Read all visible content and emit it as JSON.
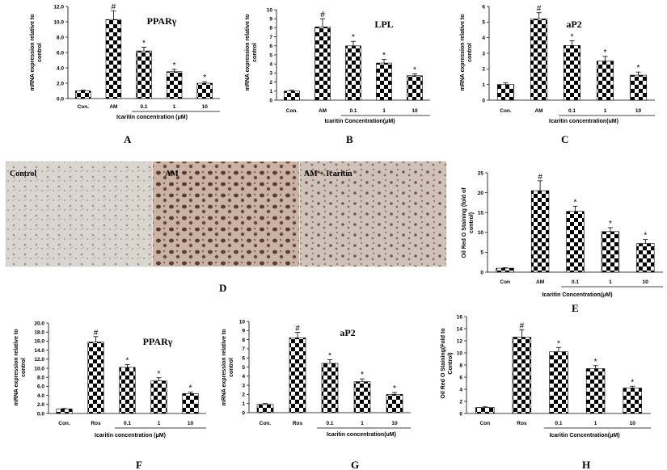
{
  "panel_letters": {
    "A": "A",
    "B": "B",
    "C": "C",
    "D": "D",
    "E": "E",
    "F": "F",
    "G": "G",
    "H": "H"
  },
  "photos": {
    "control": "Control",
    "am": "AM",
    "am_icaritin": "AM + Icaritin"
  },
  "chart_data": [
    {
      "id": "A",
      "type": "bar",
      "title": "PPARγ",
      "categories": [
        "Con.",
        "AM",
        "0.1",
        "1",
        "10"
      ],
      "values": [
        1.0,
        10.3,
        6.2,
        3.5,
        2.0
      ],
      "errors": [
        0.1,
        1.1,
        0.5,
        0.3,
        0.2
      ],
      "marks": [
        "",
        "#",
        "*",
        "*",
        "*"
      ],
      "yticks": [
        "0.0",
        "2.0",
        "4.0",
        "6.0",
        "8.0",
        "10.0",
        "12.0"
      ],
      "ylim": [
        0,
        12
      ],
      "ylabel": [
        "mRNA expression relative to",
        "control"
      ],
      "xlabel": "Icaritin concentration (μM)"
    },
    {
      "id": "B",
      "type": "bar",
      "title": "LPL",
      "categories": [
        "Con.",
        "AM",
        "0.1",
        "1",
        "10"
      ],
      "values": [
        1.0,
        8.1,
        6.0,
        4.1,
        2.7
      ],
      "errors": [
        0.1,
        0.9,
        0.5,
        0.4,
        0.2
      ],
      "marks": [
        "",
        "#",
        "*",
        "*",
        "*"
      ],
      "yticks": [
        "0",
        "1",
        "2",
        "3",
        "4",
        "5",
        "6",
        "7",
        "8",
        "9",
        "10"
      ],
      "ylim": [
        0,
        10
      ],
      "ylabel": [
        "mRNA expression relative to",
        "control"
      ],
      "xlabel": "Icaritin Concentration(μM)"
    },
    {
      "id": "C",
      "type": "bar",
      "title": "aP2",
      "categories": [
        "Con.",
        "AM",
        "0.1",
        "1",
        "10"
      ],
      "values": [
        1.0,
        5.2,
        3.5,
        2.5,
        1.6
      ],
      "errors": [
        0.1,
        0.4,
        0.3,
        0.3,
        0.2
      ],
      "marks": [
        "",
        "#",
        "*",
        "*",
        "*"
      ],
      "yticks": [
        "0",
        "1",
        "2",
        "3",
        "4",
        "5",
        "6"
      ],
      "ylim": [
        0,
        6
      ],
      "ylabel": [
        "mRNA expression relative to",
        "control"
      ],
      "xlabel": "Icaritin concentration(uM)"
    },
    {
      "id": "E",
      "type": "bar",
      "title": "",
      "categories": [
        "Con",
        "AM",
        "0.1",
        "1",
        "10"
      ],
      "values": [
        1.0,
        20.5,
        15.3,
        10.2,
        7.2
      ],
      "errors": [
        0.1,
        2.5,
        1.3,
        1.0,
        1.0
      ],
      "marks": [
        "",
        "#",
        "*",
        "*",
        "*"
      ],
      "yticks": [
        "0",
        "5",
        "10",
        "15",
        "20",
        "25"
      ],
      "ylim": [
        0,
        25
      ],
      "ylabel": [
        "Oil Red O Staining (fold of",
        "control)"
      ],
      "xlabel": "Icaritin Concentration(μM)"
    },
    {
      "id": "F",
      "type": "bar",
      "title": "PPARγ",
      "categories": [
        "Con.",
        "Ros",
        "0.1",
        "1",
        "10"
      ],
      "values": [
        1.0,
        15.8,
        10.2,
        7.2,
        4.4
      ],
      "errors": [
        0.1,
        1.2,
        0.6,
        0.7,
        0.3
      ],
      "marks": [
        "",
        "#",
        "*",
        "*",
        "*"
      ],
      "yticks": [
        "0.0",
        "2.0",
        "4.0",
        "6.0",
        "8.0",
        "10.0",
        "12.0",
        "14.0",
        "16.0",
        "18.0",
        "20.0"
      ],
      "ylim": [
        0,
        20
      ],
      "ylabel": [
        "mRNA expression relative to",
        "control"
      ],
      "xlabel": "Icaritin concentration (μM)"
    },
    {
      "id": "G",
      "type": "bar",
      "title": "aP2",
      "categories": [
        "Con.",
        "Ros",
        "0.1",
        "1",
        "10"
      ],
      "values": [
        0.9,
        8.2,
        5.4,
        3.4,
        2.0
      ],
      "errors": [
        0.1,
        0.6,
        0.4,
        0.3,
        0.2
      ],
      "marks": [
        "",
        "#",
        "*",
        "*",
        "*"
      ],
      "yticks": [
        "0",
        "1",
        "2",
        "3",
        "4",
        "5",
        "6",
        "7",
        "8",
        "9",
        "10"
      ],
      "ylim": [
        0,
        10
      ],
      "ylabel": [
        "mRNA expression relative to",
        "control"
      ],
      "xlabel": "Icaritin concentration(uM)"
    },
    {
      "id": "H",
      "type": "bar",
      "title": "",
      "categories": [
        "Con",
        "Ros",
        "0.1",
        "1",
        "10"
      ],
      "values": [
        1.0,
        12.6,
        10.2,
        7.4,
        4.2
      ],
      "errors": [
        0.1,
        1.2,
        0.7,
        0.5,
        0.3
      ],
      "marks": [
        "",
        "#",
        "*",
        "*",
        "*"
      ],
      "yticks": [
        "0",
        "2",
        "4",
        "6",
        "8",
        "10",
        "12",
        "14",
        "16"
      ],
      "ylim": [
        0,
        16
      ],
      "ylabel": [
        "Oil Red O Staining(Fold to",
        "Control)"
      ],
      "xlabel": "Icaritin Concentration(μM)"
    }
  ]
}
